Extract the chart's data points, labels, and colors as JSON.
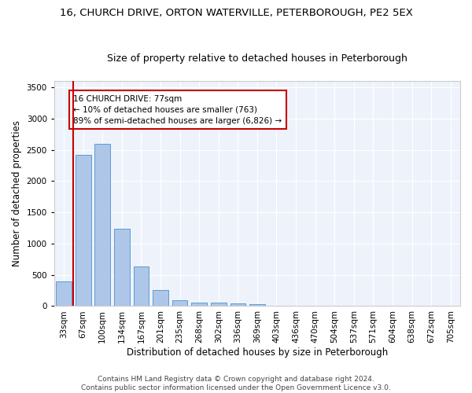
{
  "title1": "16, CHURCH DRIVE, ORTON WATERVILLE, PETERBOROUGH, PE2 5EX",
  "title2": "Size of property relative to detached houses in Peterborough",
  "xlabel": "Distribution of detached houses by size in Peterborough",
  "ylabel": "Number of detached properties",
  "footer1": "Contains HM Land Registry data © Crown copyright and database right 2024.",
  "footer2": "Contains public sector information licensed under the Open Government Licence v3.0.",
  "categories": [
    "33sqm",
    "67sqm",
    "100sqm",
    "134sqm",
    "167sqm",
    "201sqm",
    "235sqm",
    "268sqm",
    "302sqm",
    "336sqm",
    "369sqm",
    "403sqm",
    "436sqm",
    "470sqm",
    "504sqm",
    "537sqm",
    "571sqm",
    "604sqm",
    "638sqm",
    "672sqm",
    "705sqm"
  ],
  "values": [
    390,
    2420,
    2600,
    1240,
    640,
    255,
    90,
    60,
    55,
    40,
    30,
    0,
    0,
    0,
    0,
    0,
    0,
    0,
    0,
    0,
    0
  ],
  "bar_color": "#aec6e8",
  "bar_edge_color": "#5b9bd5",
  "background_color": "#eef3fb",
  "grid_color": "#ffffff",
  "vline_color": "#cc0000",
  "vline_x_index": 1,
  "annotation_text": "16 CHURCH DRIVE: 77sqm\n← 10% of detached houses are smaller (763)\n89% of semi-detached houses are larger (6,826) →",
  "annotation_box_color": "#cc0000",
  "ylim": [
    0,
    3600
  ],
  "yticks": [
    0,
    500,
    1000,
    1500,
    2000,
    2500,
    3000,
    3500
  ],
  "title1_fontsize": 9.5,
  "title2_fontsize": 9,
  "xlabel_fontsize": 8.5,
  "ylabel_fontsize": 8.5,
  "tick_fontsize": 7.5,
  "footer_fontsize": 6.5
}
